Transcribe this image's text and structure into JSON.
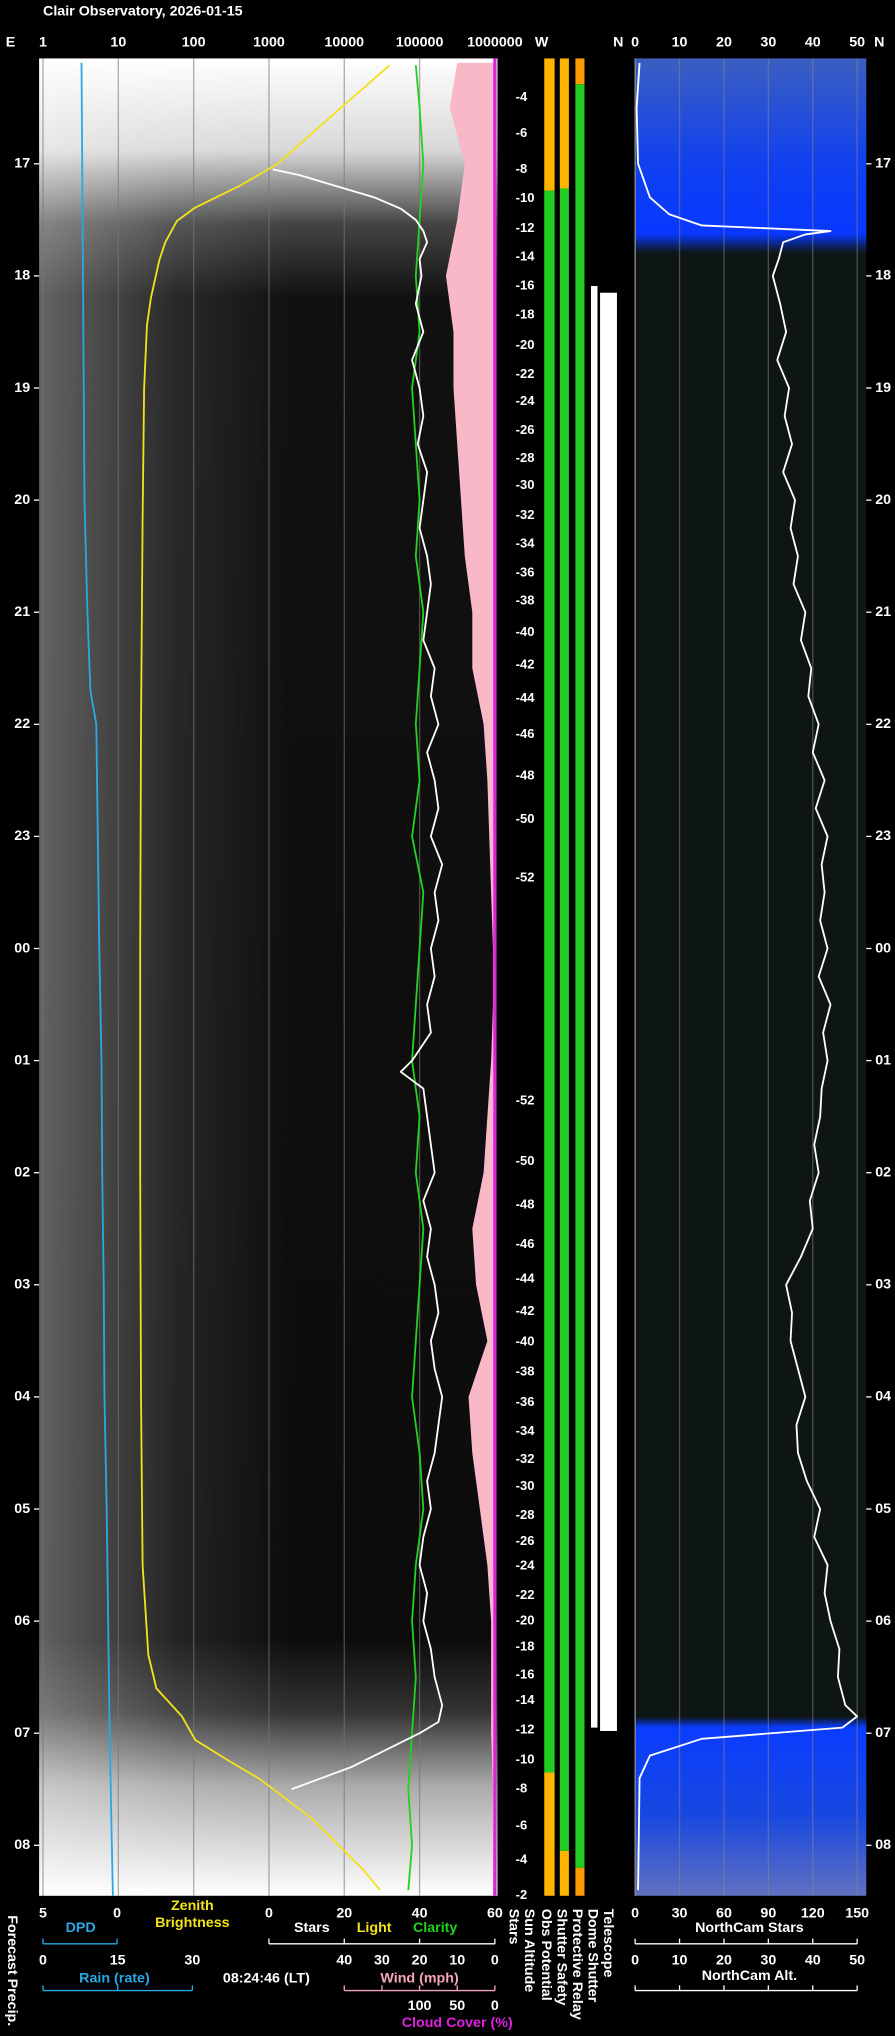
{
  "chart_data": {
    "type": "line",
    "title": "Clair Observatory, 2026-01-15",
    "timestamp": "08:24:46 (LT)",
    "compass": {
      "left": "E",
      "west": "W",
      "north": "N",
      "right": "N"
    },
    "time_lim": [
      16.06,
      32.45
    ],
    "time_ticks": [
      17,
      18,
      19,
      20,
      21,
      22,
      23,
      {
        "value": 24,
        "label": "00"
      },
      {
        "value": 25,
        "label": "01"
      },
      {
        "value": 26,
        "label": "02"
      },
      {
        "value": 27,
        "label": "03"
      },
      {
        "value": 28,
        "label": "04"
      },
      {
        "value": 29,
        "label": "05"
      },
      {
        "value": 30,
        "label": "06"
      },
      {
        "value": 31,
        "label": "07"
      },
      {
        "value": 32,
        "label": "08"
      }
    ],
    "grid": true,
    "brightness_axis": {
      "xlim": [
        1,
        1000000
      ],
      "xticks": [
        1,
        10,
        100,
        1000,
        10000,
        100000,
        1000000
      ],
      "log": true
    },
    "dpd_axis": {
      "label": "DPD",
      "xlim": [
        5,
        0
      ],
      "xticks": [
        5,
        0
      ],
      "color": "#2aa8e6"
    },
    "rain_axis": {
      "label": "Rain (rate)",
      "xlim": [
        0,
        30
      ],
      "xticks": [
        0,
        15,
        30
      ],
      "color": "#2aa8e6"
    },
    "stars_axis": {
      "xlim": [
        0,
        60
      ],
      "xticks": [
        0,
        20,
        40,
        60
      ]
    },
    "wind_axis": {
      "label": "Wind (mph)",
      "xlim": [
        40,
        0
      ],
      "xticks": [
        40,
        30,
        20,
        10,
        0
      ],
      "color": "#f4a6b8"
    },
    "cloud_axis": {
      "label": "Cloud Cover (%)",
      "xlim": [
        100,
        0
      ],
      "xticks": [
        100,
        50,
        0
      ],
      "color": "#e020e0"
    },
    "light_label": "Light",
    "stars_column": "Stars",
    "forecast_label": "Forecast Precip.",
    "series": [
      {
        "axis": "dpd",
        "color": "#2aa8e6",
        "x": [
          16.1,
          18,
          19,
          20,
          21,
          21.7,
          22,
          23,
          24,
          25,
          26,
          27,
          28,
          29,
          30,
          31,
          32,
          32.45
        ],
        "values": [
          2.4,
          2.3,
          2.25,
          2.2,
          2.0,
          1.8,
          1.4,
          1.3,
          1.2,
          1.05,
          1.0,
          0.9,
          0.85,
          0.7,
          0.6,
          0.5,
          0.35,
          0.28
        ]
      },
      {
        "name": "Zenith Brightness",
        "axis": "brightness",
        "color": "#f2e21b",
        "x": [
          16.12,
          16.5,
          17,
          17.2,
          17.39,
          17.51,
          17.7,
          17.86,
          18.2,
          18.44,
          19,
          20.17,
          22,
          24,
          26,
          28,
          29.5,
          30.3,
          30.6,
          30.85,
          31.06,
          31.25,
          31.41,
          31.6,
          31.76,
          32.22,
          32.4
        ],
        "values": [
          40000,
          9000,
          1300,
          400,
          105,
          60,
          42,
          35,
          27,
          24,
          22,
          21,
          20,
          19.5,
          19.5,
          20,
          21,
          25,
          32,
          70,
          105,
          300,
          760,
          1800,
          3700,
          18000,
          30000
        ]
      },
      {
        "name": "Clarity",
        "axis": "stars",
        "color": "#1fd31f",
        "x": [
          16.12,
          16.5,
          17,
          17.5,
          18,
          18.5,
          19,
          19.5,
          20,
          20.5,
          21,
          21.5,
          22,
          22.5,
          23,
          23.5,
          24,
          24.5,
          25,
          25.5,
          26,
          26.5,
          27,
          27.5,
          28,
          28.5,
          29,
          29.5,
          30,
          30.5,
          31,
          31.5,
          32,
          32.4
        ],
        "values": [
          39,
          40,
          41,
          40,
          39,
          40,
          38,
          39,
          40,
          39,
          41,
          40,
          39,
          40,
          38,
          41,
          40,
          39,
          38,
          40,
          39,
          41,
          40,
          39,
          38,
          40,
          41,
          39,
          38,
          39,
          38,
          37,
          38,
          37
        ]
      },
      {
        "name": "Stars",
        "axis": "stars",
        "color": "#ffffff",
        "x": [
          17.05,
          17.1,
          17.2,
          17.3,
          17.4,
          17.5,
          17.6,
          17.7,
          17.85,
          18,
          18.25,
          18.5,
          18.75,
          19,
          19.25,
          19.5,
          19.75,
          20,
          20.25,
          20.5,
          20.75,
          21,
          21.25,
          21.5,
          21.75,
          22,
          22.25,
          22.5,
          22.75,
          23,
          23.25,
          23.5,
          23.75,
          24,
          24.25,
          24.5,
          24.75,
          25,
          25.1,
          25.25,
          25.5,
          25.75,
          26,
          26.25,
          26.5,
          26.75,
          27,
          27.25,
          27.5,
          27.75,
          28,
          28.25,
          28.5,
          28.75,
          29,
          29.25,
          29.5,
          29.75,
          30,
          30.25,
          30.5,
          30.75,
          30.9,
          31,
          31.1,
          31.2,
          31.3,
          31.4,
          31.5
        ],
        "values": [
          1,
          8,
          18,
          28,
          35,
          39,
          41,
          42,
          40,
          40.5,
          39,
          41,
          38,
          40,
          41,
          39.5,
          42,
          41,
          40,
          42,
          43,
          42,
          41,
          44,
          43,
          45,
          42,
          44,
          45,
          43,
          46,
          44,
          45,
          43,
          44,
          42,
          43,
          38,
          35,
          41,
          42,
          43,
          44,
          41,
          43,
          42,
          44,
          45,
          43,
          44,
          46,
          45,
          44,
          42,
          43,
          41,
          40,
          42,
          41,
          43,
          44,
          46,
          45,
          40,
          34,
          28,
          22,
          14,
          6
        ]
      },
      {
        "axis": "wind",
        "color": "#f8b8c8",
        "style": "area",
        "x": [
          16.1,
          16.5,
          17,
          17.5,
          18,
          18.5,
          19,
          19.5,
          20,
          20.5,
          21,
          21.5,
          22,
          22.5,
          23,
          23.5,
          24,
          24.5,
          25,
          25.5,
          26,
          26.5,
          27,
          27.5,
          28,
          28.5,
          29,
          29.5,
          30,
          30.5,
          31,
          31.5,
          32,
          32.45
        ],
        "values": [
          10,
          12,
          8,
          10,
          13,
          11,
          11,
          10,
          9,
          8,
          6,
          6,
          3,
          2,
          1.5,
          1,
          0.5,
          0.5,
          1,
          2,
          3,
          6,
          5,
          2,
          7,
          6,
          4,
          2,
          1,
          1,
          1,
          0.5,
          0.5,
          0.5
        ]
      },
      {
        "axis": "cloud",
        "color": "#dd22dd",
        "x": [
          16.06,
          32.45
        ],
        "values": [
          0,
          0
        ]
      }
    ],
    "sun_altitude": {
      "label": "Sun Altitude",
      "x": [
        16.41,
        16.73,
        17.05,
        17.31,
        17.58,
        17.83,
        18.09,
        18.35,
        18.62,
        18.88,
        19.12,
        19.38,
        19.63,
        19.87,
        20.14,
        20.39,
        20.65,
        20.9,
        21.18,
        21.47,
        21.77,
        22.09,
        22.46,
        22.85,
        23.37,
        25.36,
        25.9,
        26.29,
        26.64,
        26.95,
        27.24,
        27.51,
        27.78,
        28.05,
        28.31,
        28.56,
        28.8,
        29.06,
        29.29,
        29.51,
        29.77,
        30.0,
        30.23,
        30.48,
        30.71,
        30.97,
        31.24,
        31.5,
        31.83,
        32.13,
        32.45
      ],
      "values": [
        -4,
        -6,
        -8,
        -10,
        -12,
        -14,
        -16,
        -18,
        -20,
        -22,
        -24,
        -26,
        -28,
        -30,
        -32,
        -34,
        -36,
        -38,
        -40,
        -42,
        -44,
        -46,
        -48,
        -50,
        -52,
        -52,
        -50,
        -48,
        -46,
        -44,
        -42,
        -40,
        -38,
        -36,
        -34,
        -32,
        -30,
        -28,
        -26,
        -24,
        -22,
        -20,
        -18,
        -16,
        -14,
        -12,
        -10,
        -8,
        -6,
        -4,
        -2
      ]
    },
    "status": [
      {
        "name": "Obs Potential",
        "segments": [
          {
            "start": 16.06,
            "end": 17.24,
            "color": "#ffb400"
          },
          {
            "start": 17.24,
            "end": 31.35,
            "color": "#22cc22"
          },
          {
            "start": 31.35,
            "end": 32.45,
            "color": "#ffb400"
          }
        ]
      },
      {
        "name": "Shutter Safety",
        "segments": [
          {
            "start": 16.06,
            "end": 17.22,
            "color": "#ffb400"
          },
          {
            "start": 17.22,
            "end": 32.05,
            "color": "#22cc22"
          },
          {
            "start": 32.05,
            "end": 32.45,
            "color": "#ffb400"
          }
        ]
      },
      {
        "name": "Protective Relay",
        "segments": [
          {
            "start": 16.06,
            "end": 16.29,
            "color": "#ff9a00"
          },
          {
            "start": 16.29,
            "end": 32.2,
            "color": "#22cc22"
          },
          {
            "start": 32.2,
            "end": 32.45,
            "color": "#ff9a00"
          }
        ]
      },
      {
        "name": "Dome Shutter",
        "segments": [
          {
            "start": 18.09,
            "end": 30.95,
            "color": "#ffffff"
          }
        ]
      },
      {
        "name": "Telescope",
        "segments": [
          {
            "start": 18.15,
            "end": 30.98,
            "color": "#ffffff"
          }
        ]
      }
    ],
    "northcam": {
      "stars_label": "NorthCam Stars",
      "stars_xlim": [
        0,
        150
      ],
      "stars_xticks": [
        0,
        30,
        60,
        90,
        120,
        150
      ],
      "alt_label": "NorthCam Alt.",
      "alt_xlim": [
        0,
        50
      ],
      "alt_xticks": [
        0,
        10,
        20,
        30,
        40,
        50
      ],
      "color": "#ffffff",
      "x": [
        16.1,
        16.5,
        17,
        17.3,
        17.45,
        17.55,
        17.6,
        17.63,
        17.7,
        17.85,
        18,
        18.25,
        18.5,
        18.75,
        19,
        19.25,
        19.5,
        19.75,
        20,
        20.25,
        20.5,
        20.75,
        21,
        21.25,
        21.5,
        21.75,
        22,
        22.25,
        22.5,
        22.75,
        23,
        23.25,
        23.5,
        23.75,
        24,
        24.25,
        24.5,
        24.75,
        25,
        25.25,
        25.5,
        25.75,
        26,
        26.25,
        26.5,
        26.75,
        27,
        27.25,
        27.5,
        27.75,
        28,
        28.25,
        28.5,
        28.75,
        29,
        29.25,
        29.5,
        29.75,
        30,
        30.25,
        30.5,
        30.75,
        30.85,
        30.95,
        31.05,
        31.2,
        31.4,
        32.4
      ],
      "values": [
        3,
        1,
        2,
        10,
        23,
        45,
        132,
        115,
        100,
        97,
        93,
        98,
        102,
        96,
        104,
        101,
        106,
        100,
        108,
        105,
        110,
        107,
        115,
        112,
        119,
        117,
        124,
        120,
        128,
        122,
        130,
        126,
        128,
        125,
        130,
        124,
        132,
        127,
        130,
        126,
        125,
        121,
        124,
        118,
        120,
        112,
        102,
        106,
        105,
        110,
        115,
        109,
        110,
        116,
        125,
        121,
        130,
        128,
        132,
        138,
        137,
        142,
        150,
        140,
        45,
        10,
        3,
        2
      ]
    }
  }
}
